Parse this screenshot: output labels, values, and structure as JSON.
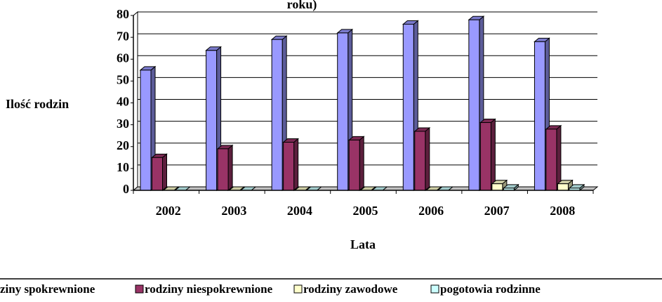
{
  "chart_data": {
    "type": "bar3d",
    "title": "roku)",
    "x_label": "Lata",
    "y_label": "Ilość rodzin",
    "categories": [
      "2002",
      "2003",
      "2004",
      "2005",
      "2006",
      "2007",
      "2008"
    ],
    "series": [
      {
        "name": "ziny spokrewnione",
        "color": "#9999ff",
        "values": [
          55,
          64,
          69,
          72,
          76,
          78,
          68
        ]
      },
      {
        "name": "rodziny niespokrewnione",
        "color": "#993366",
        "values": [
          15,
          19,
          22,
          23,
          27,
          31,
          28
        ]
      },
      {
        "name": "rodziny zawodowe",
        "color": "#ffffcc",
        "values": [
          0,
          0,
          0,
          0,
          0,
          3,
          3
        ]
      },
      {
        "name": "pogotowia rodzinne",
        "color": "#ccffff",
        "values": [
          0,
          0,
          0,
          0,
          0,
          1,
          1
        ]
      }
    ],
    "ylim": [
      0,
      80
    ],
    "yticks": [
      0,
      10,
      20,
      30,
      40,
      50,
      60,
      70,
      80
    ],
    "grid": true,
    "legend": "bottom"
  }
}
